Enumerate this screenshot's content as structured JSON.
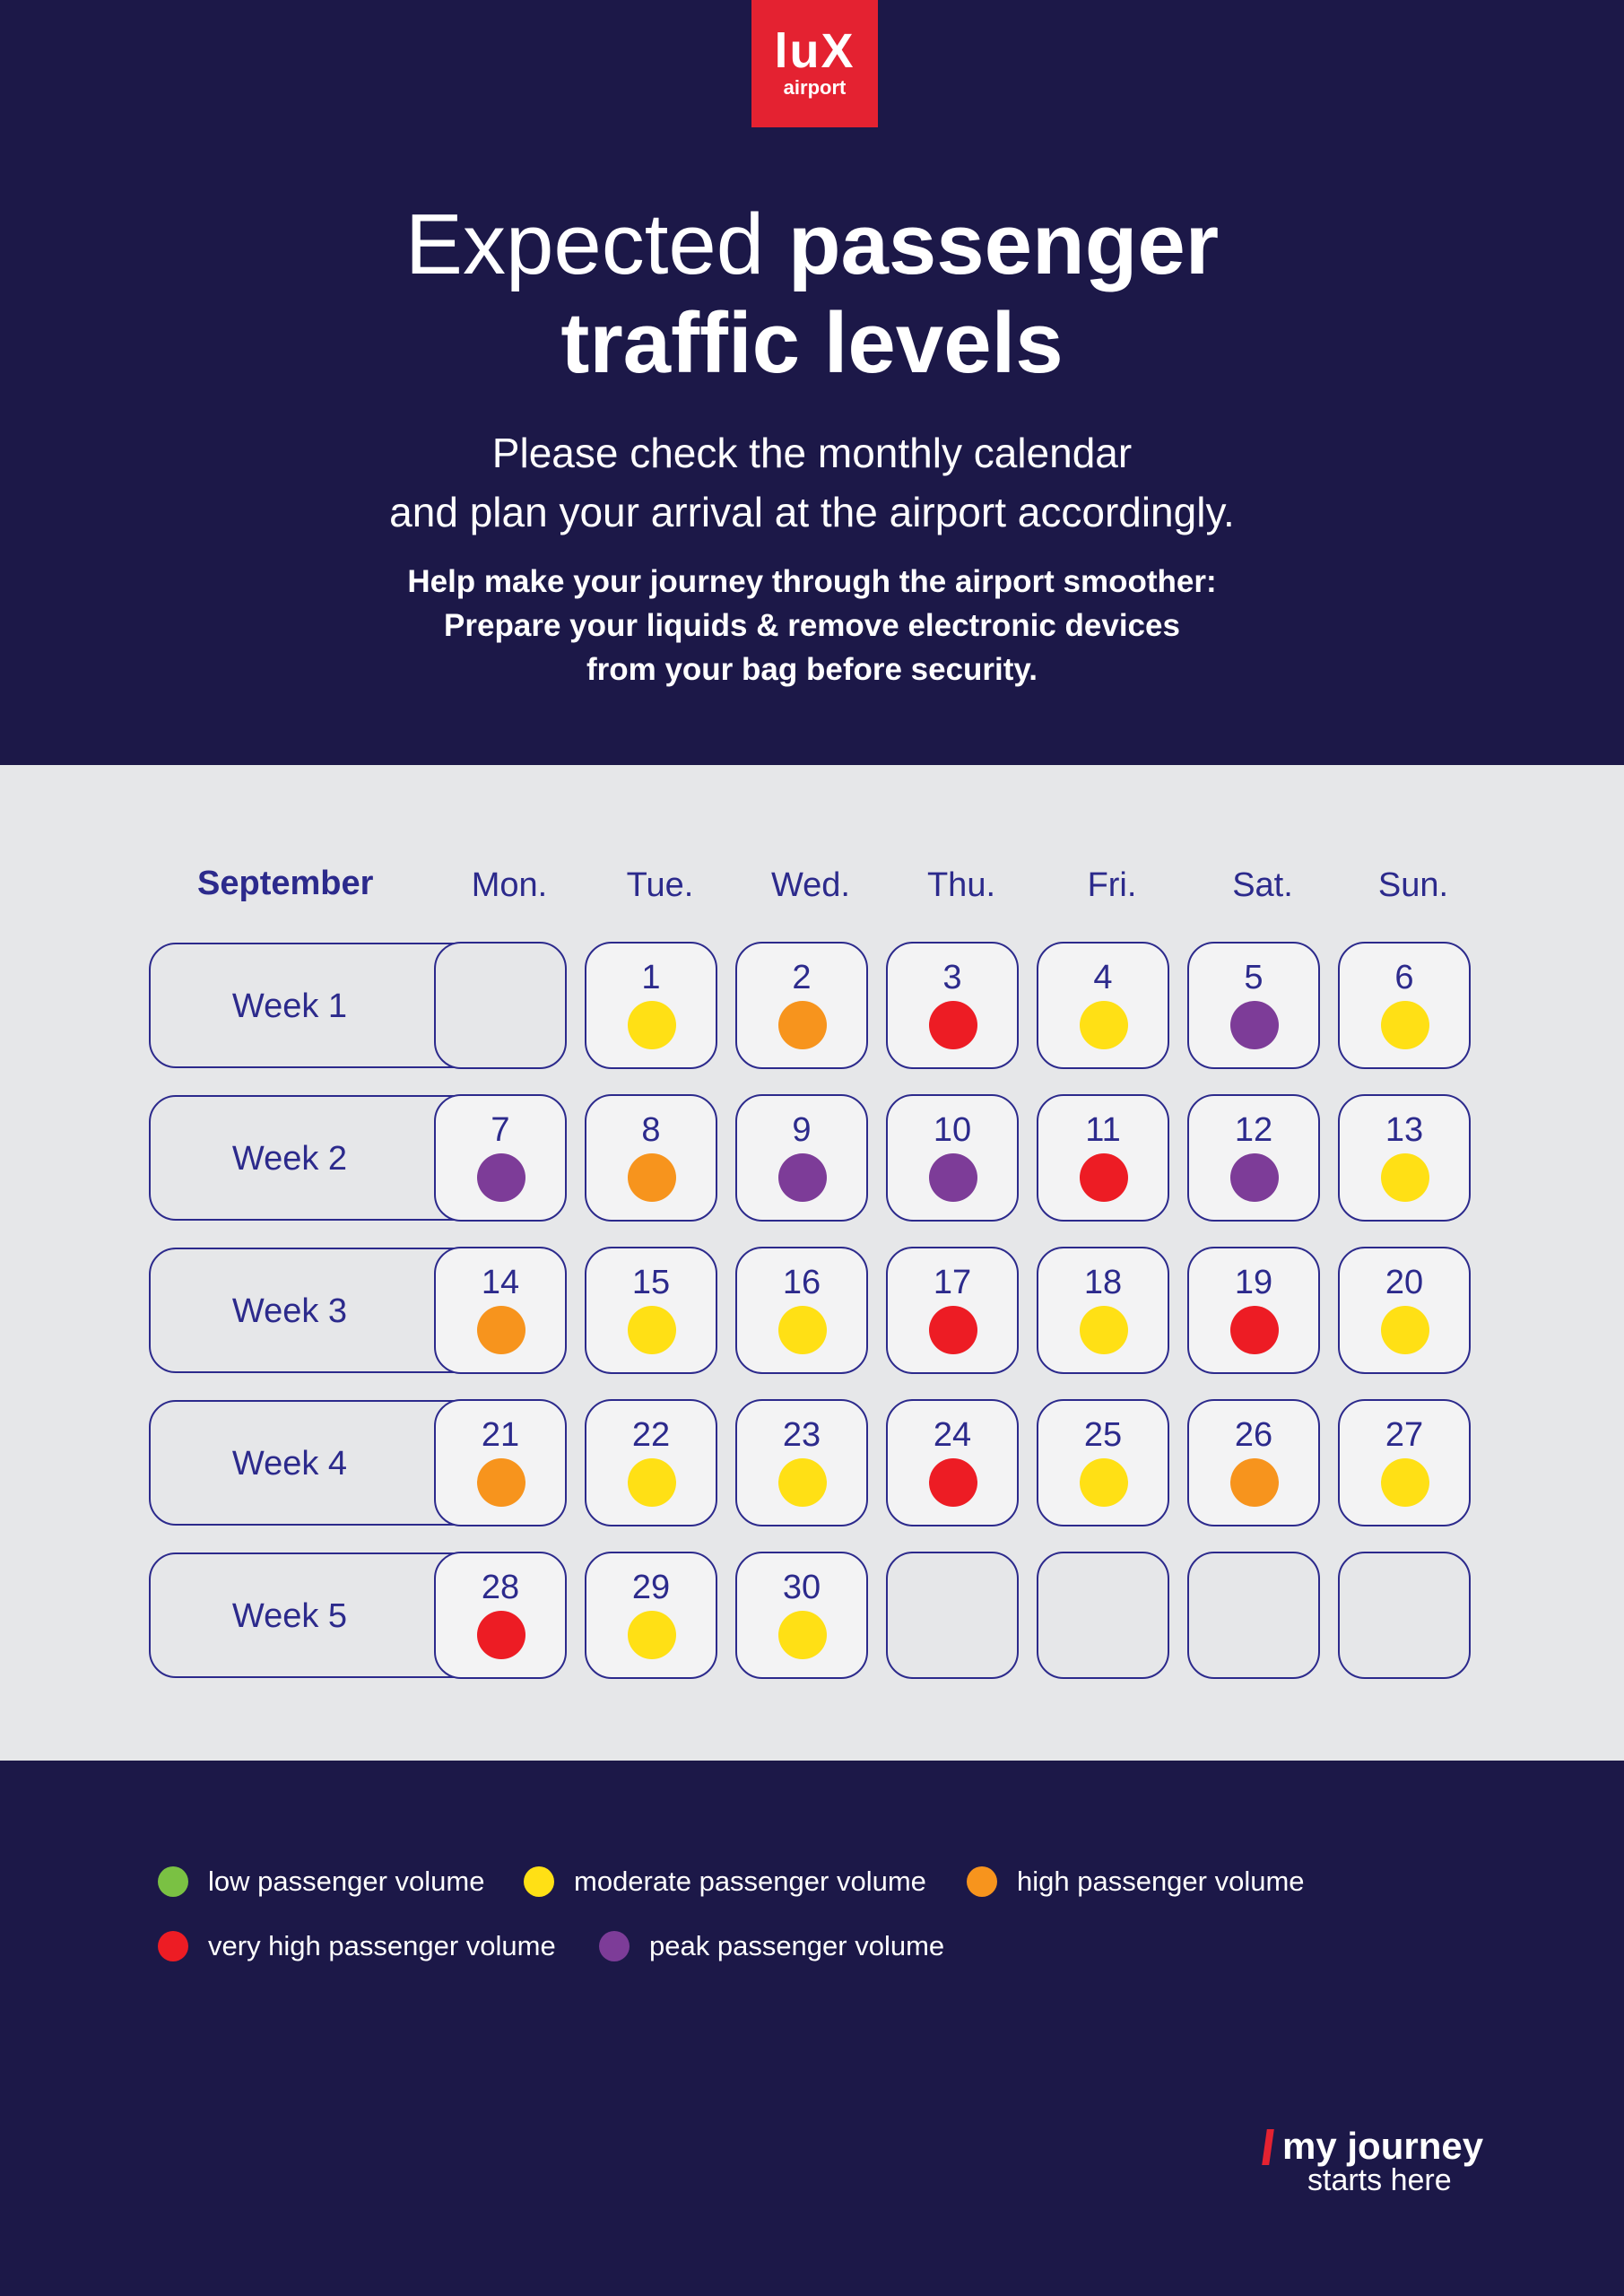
{
  "logo": {
    "line1": "luX",
    "line2": "airport"
  },
  "header": {
    "title_light": "Expected",
    "title_bold_1": "passenger",
    "title_bold_2": "traffic levels",
    "subtitle_1": "Please check the monthly calendar",
    "subtitle_2": "and plan your arrival at the airport accordingly.",
    "help_1": "Help make your journey through the airport smoother:",
    "help_2": "Prepare your liquids & remove electronic devices",
    "help_3": "from your bag before security."
  },
  "calendar": {
    "month": "September",
    "days": [
      "Mon.",
      "Tue.",
      "Wed.",
      "Thu.",
      "Fri.",
      "Sat.",
      "Sun."
    ],
    "weeks": [
      {
        "label": "Week 1",
        "days": [
          null,
          {
            "n": "1",
            "level": "moderate"
          },
          {
            "n": "2",
            "level": "high"
          },
          {
            "n": "3",
            "level": "very_high"
          },
          {
            "n": "4",
            "level": "moderate"
          },
          {
            "n": "5",
            "level": "peak"
          },
          {
            "n": "6",
            "level": "moderate"
          }
        ]
      },
      {
        "label": "Week 2",
        "days": [
          {
            "n": "7",
            "level": "peak"
          },
          {
            "n": "8",
            "level": "high"
          },
          {
            "n": "9",
            "level": "peak"
          },
          {
            "n": "10",
            "level": "peak"
          },
          {
            "n": "11",
            "level": "very_high"
          },
          {
            "n": "12",
            "level": "peak"
          },
          {
            "n": "13",
            "level": "moderate"
          }
        ]
      },
      {
        "label": "Week 3",
        "days": [
          {
            "n": "14",
            "level": "high"
          },
          {
            "n": "15",
            "level": "moderate"
          },
          {
            "n": "16",
            "level": "moderate"
          },
          {
            "n": "17",
            "level": "very_high"
          },
          {
            "n": "18",
            "level": "moderate"
          },
          {
            "n": "19",
            "level": "very_high"
          },
          {
            "n": "20",
            "level": "moderate"
          }
        ]
      },
      {
        "label": "Week 4",
        "days": [
          {
            "n": "21",
            "level": "high"
          },
          {
            "n": "22",
            "level": "moderate"
          },
          {
            "n": "23",
            "level": "moderate"
          },
          {
            "n": "24",
            "level": "very_high"
          },
          {
            "n": "25",
            "level": "moderate"
          },
          {
            "n": "26",
            "level": "high"
          },
          {
            "n": "27",
            "level": "moderate"
          }
        ]
      },
      {
        "label": "Week 5",
        "days": [
          {
            "n": "28",
            "level": "very_high"
          },
          {
            "n": "29",
            "level": "moderate"
          },
          {
            "n": "30",
            "level": "moderate"
          },
          null,
          null,
          null,
          null
        ]
      }
    ]
  },
  "colors": {
    "low": "#7ac143",
    "moderate": "#ffe015",
    "high": "#f7941d",
    "very_high": "#ed1c24",
    "peak": "#7d3c98",
    "brand_red": "#e42231",
    "navy": "#1c1848"
  },
  "legend": [
    {
      "key": "low",
      "label": "low passenger volume"
    },
    {
      "key": "moderate",
      "label": "moderate passenger volume"
    },
    {
      "key": "high",
      "label": "high passenger volume"
    },
    {
      "key": "very_high",
      "label": "very high passenger volume"
    },
    {
      "key": "peak",
      "label": "peak passenger volume"
    }
  ],
  "tagline": {
    "line1": "my journey",
    "line2": "starts here"
  }
}
